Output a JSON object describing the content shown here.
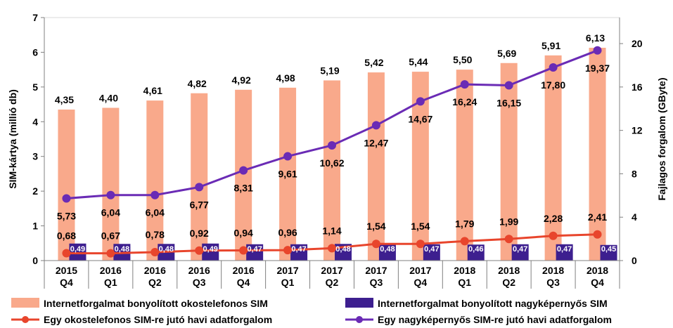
{
  "chart_data": {
    "type": "bar+line",
    "categories": [
      [
        "2015",
        "Q4"
      ],
      [
        "2016",
        "Q1"
      ],
      [
        "2016",
        "Q2"
      ],
      [
        "2016",
        "Q3"
      ],
      [
        "2016",
        "Q4"
      ],
      [
        "2017",
        "Q1"
      ],
      [
        "2017",
        "Q2"
      ],
      [
        "2017",
        "Q3"
      ],
      [
        "2017",
        "Q4"
      ],
      [
        "2018",
        "Q1"
      ],
      [
        "2018",
        "Q2"
      ],
      [
        "2018",
        "Q3"
      ],
      [
        "2018",
        "Q4"
      ]
    ],
    "ylabel_left": "SIM-kártya (millió db)",
    "ylabel_right": "Fajlagos forgalom (GByte)",
    "ylim_left": [
      0,
      7
    ],
    "yticks_left": [
      "0",
      "1",
      "2",
      "3",
      "4",
      "5",
      "6",
      "7"
    ],
    "ylim_right": [
      0,
      22.4
    ],
    "yticks_right": [
      "0",
      "4",
      "8",
      "12",
      "16",
      "20"
    ],
    "series": [
      {
        "name": "Internetforgalmat bonyolított okostelefonos SIM",
        "kind": "bar",
        "axis": "left",
        "color": "#f9a98b",
        "values": [
          4.35,
          4.4,
          4.61,
          4.82,
          4.92,
          4.98,
          5.19,
          5.42,
          5.44,
          5.5,
          5.69,
          5.91,
          6.13
        ],
        "labels": [
          "4,35",
          "4,40",
          "4,61",
          "4,82",
          "4,92",
          "4,98",
          "5,19",
          "5,42",
          "5,44",
          "5,50",
          "5,69",
          "5,91",
          "6,13"
        ]
      },
      {
        "name": "Internetforgalmat bonyolított nagyképernyős SIM",
        "kind": "bar",
        "axis": "left",
        "color": "#3d1f8f",
        "values": [
          0.49,
          0.48,
          0.48,
          0.49,
          0.47,
          0.47,
          0.48,
          0.48,
          0.47,
          0.46,
          0.47,
          0.47,
          0.45
        ],
        "labels": [
          "0,49",
          "0,48",
          "0,48",
          "0,49",
          "0,47",
          "0,47",
          "0,48",
          "0,48",
          "0,47",
          "0,46",
          "0,47",
          "0,47",
          "0,45"
        ]
      },
      {
        "name": "Egy okostelefonos SIM-re jutó havi adatforgalom",
        "kind": "line",
        "axis": "right",
        "color": "#e8452c",
        "values": [
          0.68,
          0.67,
          0.78,
          0.92,
          0.94,
          0.96,
          1.14,
          1.54,
          1.54,
          1.79,
          1.99,
          2.28,
          2.41
        ],
        "labels": [
          "0,68",
          "0,67",
          "0,78",
          "0,92",
          "0,94",
          "0,96",
          "1,14",
          "1,54",
          "1,54",
          "1,79",
          "1,99",
          "2,28",
          "2,41"
        ]
      },
      {
        "name": "Egy nagyképernyős SIM-re jutó havi adatforgalom",
        "kind": "line",
        "axis": "right",
        "color": "#6a2bb5",
        "values": [
          5.73,
          6.04,
          6.04,
          6.77,
          8.31,
          9.61,
          10.62,
          12.47,
          14.67,
          16.24,
          16.15,
          17.8,
          19.37
        ],
        "labels": [
          "5,73",
          "6,04",
          "6,04",
          "6,77",
          "8,31",
          "9,61",
          "10,62",
          "12,47",
          "14,67",
          "16,24",
          "16,15",
          "17,80",
          "19,37"
        ]
      }
    ],
    "legend_position": "bottom"
  }
}
